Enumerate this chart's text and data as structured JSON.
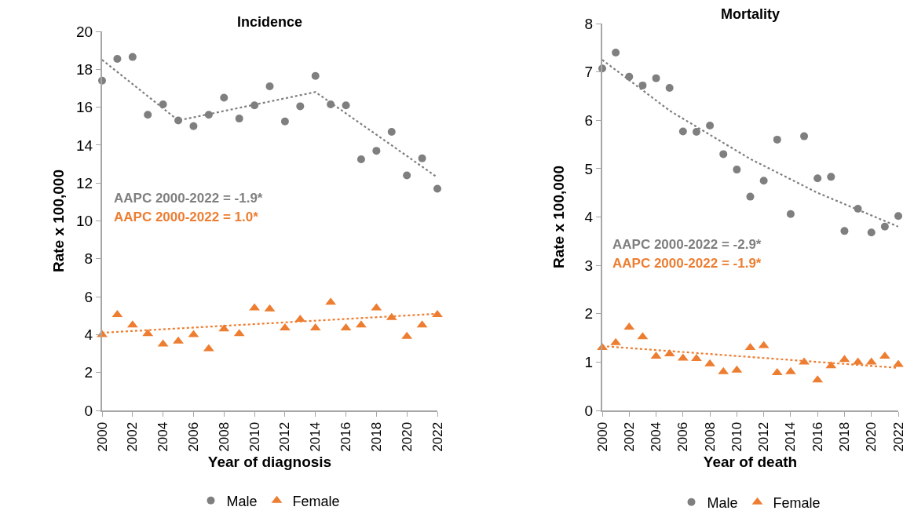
{
  "chart_data": [
    {
      "type": "scatter",
      "title": "Incidence",
      "xlabel": "Year of diagnosis",
      "ylabel": "Rate x 100,000",
      "x": [
        2000,
        2001,
        2002,
        2003,
        2004,
        2005,
        2006,
        2007,
        2008,
        2009,
        2010,
        2011,
        2012,
        2013,
        2014,
        2015,
        2016,
        2017,
        2018,
        2019,
        2020,
        2021,
        2022
      ],
      "xlim": [
        2000,
        2022
      ],
      "xticks": [
        2000,
        2002,
        2004,
        2006,
        2008,
        2010,
        2012,
        2014,
        2016,
        2018,
        2020,
        2022
      ],
      "ylim": [
        0,
        20
      ],
      "yticks": [
        0,
        2,
        4,
        6,
        8,
        10,
        12,
        14,
        16,
        18,
        20
      ],
      "grid": false,
      "legend": "bottom",
      "series": [
        {
          "name": "Male",
          "color": "#7f7f7f",
          "marker": "circle",
          "values": [
            17.4,
            18.55,
            18.65,
            15.6,
            16.15,
            15.3,
            15.0,
            15.6,
            16.5,
            15.4,
            16.1,
            17.1,
            15.25,
            16.05,
            17.65,
            16.15,
            16.1,
            13.25,
            13.7,
            14.7,
            12.4,
            13.3,
            11.7
          ]
        },
        {
          "name": "Female",
          "color": "#ed7d31",
          "marker": "triangle",
          "values": [
            4.0,
            5.05,
            4.5,
            4.05,
            3.5,
            3.65,
            4.0,
            3.25,
            4.3,
            4.05,
            5.4,
            5.35,
            4.35,
            4.8,
            4.35,
            5.7,
            4.35,
            4.5,
            5.4,
            4.9,
            3.9,
            4.5,
            5.05
          ]
        },
        {
          "type": "line",
          "color": "#7f7f7f",
          "line_style": "dotted",
          "marker": "none",
          "x": [
            2000,
            2005,
            2014,
            2022
          ],
          "values": [
            18.5,
            15.3,
            16.8,
            12.3
          ]
        },
        {
          "type": "line",
          "color": "#ed7d31",
          "line_style": "dotted",
          "marker": "none",
          "x": [
            2000,
            2022
          ],
          "values": [
            4.1,
            5.1
          ]
        }
      ],
      "annotations": [
        "AAPC 2000-2022 = -1.9*",
        "AAPC 2000-2022 = 1.0*"
      ]
    },
    {
      "type": "scatter",
      "title": "Mortality",
      "xlabel": "Year of death",
      "ylabel": "Rate x 100,000",
      "x": [
        2000,
        2001,
        2002,
        2003,
        2004,
        2005,
        2006,
        2007,
        2008,
        2009,
        2010,
        2011,
        2012,
        2013,
        2014,
        2015,
        2016,
        2017,
        2018,
        2019,
        2020,
        2021,
        2022
      ],
      "xlim": [
        2000,
        2022
      ],
      "xticks": [
        2000,
        2002,
        2004,
        2006,
        2008,
        2010,
        2012,
        2014,
        2016,
        2018,
        2020,
        2022
      ],
      "ylim": [
        0,
        8
      ],
      "yticks": [
        0,
        1,
        2,
        3,
        4,
        5,
        6,
        7,
        8
      ],
      "grid": false,
      "legend": "bottom",
      "series": [
        {
          "name": "Male",
          "color": "#7f7f7f",
          "marker": "circle",
          "values": [
            7.07,
            7.4,
            6.9,
            6.72,
            6.87,
            6.67,
            5.77,
            5.76,
            5.89,
            5.3,
            4.98,
            4.42,
            4.75,
            5.6,
            4.06,
            5.67,
            4.8,
            4.83,
            3.71,
            4.17,
            3.68,
            3.8,
            4.02
          ]
        },
        {
          "name": "Female",
          "color": "#ed7d31",
          "marker": "triangle",
          "values": [
            1.3,
            1.4,
            1.72,
            1.52,
            1.12,
            1.17,
            1.08,
            1.07,
            0.96,
            0.8,
            0.83,
            1.3,
            1.34,
            0.78,
            0.8,
            1.0,
            0.63,
            0.92,
            1.05,
            1.0,
            1.0,
            1.12,
            0.95
          ]
        },
        {
          "type": "line",
          "color": "#7f7f7f",
          "line_style": "dotted",
          "marker": "none",
          "x": [
            2000,
            2005,
            2011,
            2016,
            2022
          ],
          "values": [
            7.25,
            6.2,
            5.2,
            4.5,
            3.8
          ]
        },
        {
          "type": "line",
          "color": "#ed7d31",
          "line_style": "dotted",
          "marker": "none",
          "x": [
            2000,
            2022
          ],
          "values": [
            1.33,
            0.88
          ]
        }
      ],
      "annotations": [
        "AAPC 2000-2022 = -2.9*",
        "AAPC 2000-2022 = -1.9*"
      ]
    }
  ]
}
